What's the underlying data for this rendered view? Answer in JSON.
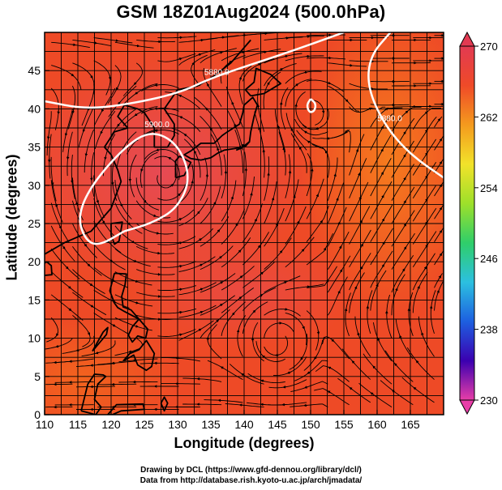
{
  "title": "GSM 18Z01Aug2024 (500.0hPa)",
  "credits": {
    "line1": "Drawing by DCL (https://www.gfd-dennou.org/library/dcl/)",
    "line2": "Data from http://database.rish.kyoto-u.ac.jp/arch/jmadata/"
  },
  "chart_data": {
    "type": "heatmap",
    "xlabel": "Longitude (degrees)",
    "ylabel": "Latitude  (degrees)",
    "xlim": [
      110,
      170
    ],
    "ylim": [
      0,
      50
    ],
    "x_ticks": [
      110,
      115,
      120,
      125,
      130,
      135,
      140,
      145,
      150,
      155,
      160,
      165
    ],
    "y_ticks": [
      0,
      5,
      10,
      15,
      20,
      25,
      30,
      35,
      40,
      45
    ],
    "grid": true,
    "colorbar": {
      "min": 230,
      "max": 270,
      "labels": [
        230,
        238,
        246,
        254,
        262,
        270
      ],
      "colors": [
        "#e83ea8",
        "#3b00b0",
        "#1d5fe0",
        "#2cc0e0",
        "#2fce6a",
        "#9ee02a",
        "#f2e22a",
        "#f49a1e",
        "#ef4a28",
        "#e23a52"
      ]
    },
    "contours": [
      {
        "label": "5880.0",
        "lonlat": [
          [
            110,
            41
          ],
          [
            116,
            40
          ],
          [
            122,
            40.5
          ],
          [
            130,
            42
          ],
          [
            135,
            44
          ],
          [
            140,
            45.5
          ],
          [
            147,
            47.5
          ],
          [
            155,
            50
          ]
        ]
      },
      {
        "label": "5900.0",
        "lonlat": [
          [
            122,
            24
          ],
          [
            118,
            22
          ],
          [
            116,
            23
          ],
          [
            115,
            26
          ],
          [
            117,
            30
          ],
          [
            122,
            35
          ],
          [
            126,
            37.2
          ],
          [
            130,
            35.5
          ],
          [
            132,
            31
          ],
          [
            130,
            27
          ],
          [
            126,
            25
          ],
          [
            122,
            24
          ]
        ]
      },
      {
        "label": "",
        "lonlat": [
          [
            150,
            41.3
          ],
          [
            149.4,
            40.5
          ],
          [
            149.8,
            39.5
          ],
          [
            150.6,
            39.7
          ],
          [
            150.8,
            40.7
          ],
          [
            150,
            41.3
          ]
        ]
      },
      {
        "label": "5880.0",
        "lonlat": [
          [
            162,
            50
          ],
          [
            159,
            47
          ],
          [
            158.5,
            43
          ],
          [
            161,
            38
          ],
          [
            165,
            34
          ],
          [
            170,
            31
          ]
        ]
      }
    ]
  }
}
